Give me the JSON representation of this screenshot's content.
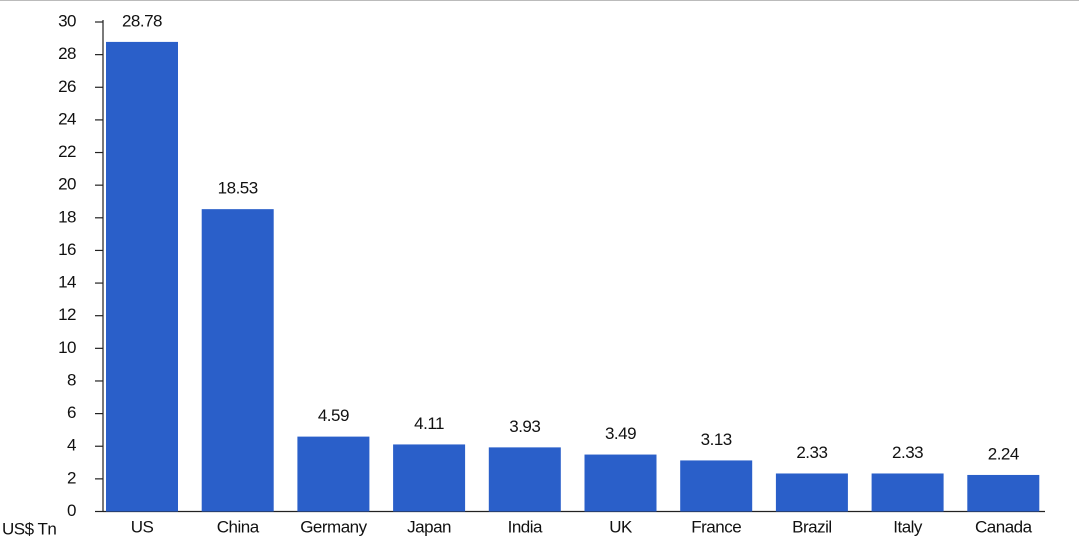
{
  "chart_data": {
    "type": "bar",
    "y_label": "US$ Tn",
    "categories": [
      "US",
      "China",
      "Germany",
      "Japan",
      "India",
      "UK",
      "France",
      "Brazil",
      "Italy",
      "Canada"
    ],
    "values": [
      28.78,
      18.53,
      4.59,
      4.11,
      3.93,
      3.49,
      3.13,
      2.33,
      2.33,
      2.24
    ],
    "color": "#2a5fc9",
    "ylim": [
      0,
      30
    ],
    "yticks": [
      0,
      2,
      4,
      6,
      8,
      10,
      12,
      14,
      16,
      18,
      20,
      22,
      24,
      26,
      28,
      30
    ]
  }
}
